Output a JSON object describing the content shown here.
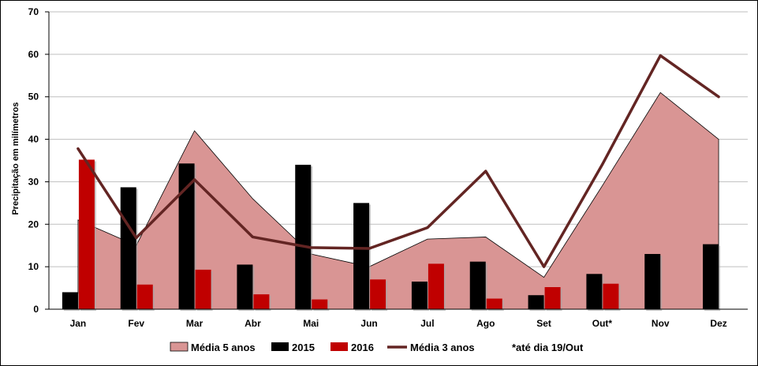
{
  "chart_data": {
    "type": "bar",
    "categories": [
      "Jan",
      "Fev",
      "Mar",
      "Abr",
      "Mai",
      "Jun",
      "Jul",
      "Ago",
      "Set",
      "Out*",
      "Nov",
      "Dez"
    ],
    "ylabel": "Precipitação em milímetros",
    "xlabel": "",
    "ylim": [
      0,
      70
    ],
    "yticks": [
      0,
      10,
      20,
      30,
      40,
      50,
      60,
      70
    ],
    "grid": "horizontal",
    "legend_position": "bottom",
    "series": [
      {
        "name": "Média 5 anos",
        "kind": "area",
        "color": "#d99594",
        "values": [
          21,
          15,
          42,
          26,
          13,
          10,
          16.5,
          17,
          7.5,
          29,
          51,
          40
        ]
      },
      {
        "name": "2015",
        "kind": "bar",
        "color": "#000000",
        "values": [
          4,
          28.7,
          34.3,
          10.5,
          34,
          25,
          6.5,
          11.2,
          3.3,
          8.3,
          13,
          15.3
        ]
      },
      {
        "name": "2016",
        "kind": "bar",
        "color": "#c00000",
        "values": [
          35.2,
          5.8,
          9.3,
          3.5,
          2.3,
          7,
          10.7,
          2.5,
          5.2,
          6,
          null,
          null
        ]
      },
      {
        "name": "Média 3 anos",
        "kind": "line",
        "color": "#632523",
        "values": [
          37.8,
          16.8,
          30.5,
          17,
          14.5,
          14.3,
          19.2,
          32.5,
          10,
          34,
          59.7,
          50
        ]
      }
    ],
    "note": "*até dia 19/Out"
  }
}
